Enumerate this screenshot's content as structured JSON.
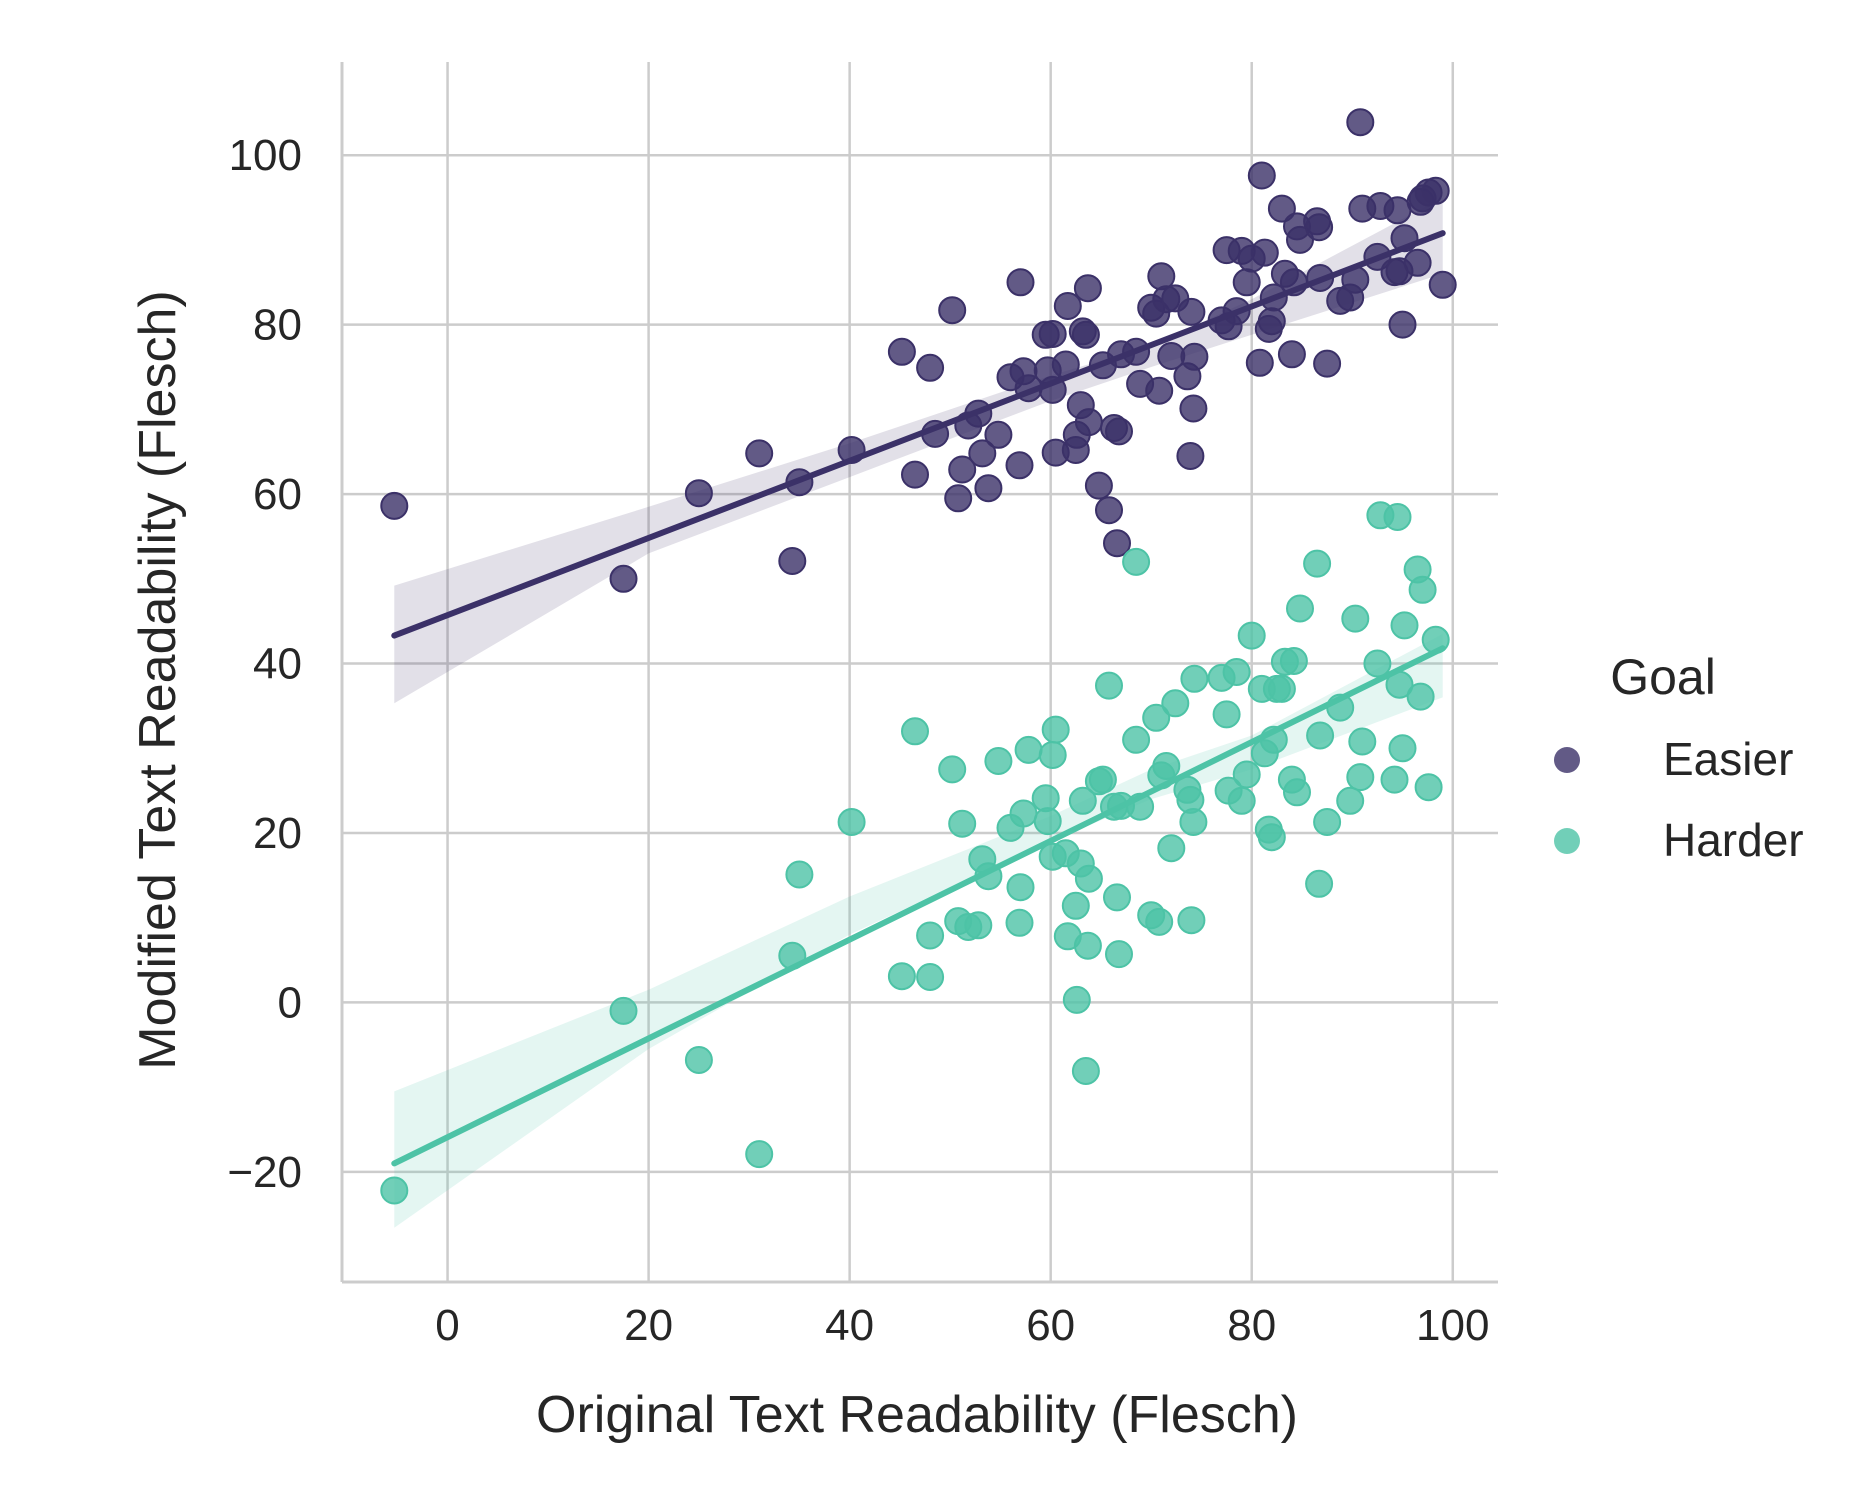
{
  "chart_data": {
    "type": "scatter",
    "xlabel": "Original Text Readability (Flesch)",
    "ylabel": "Modified Text Readability (Flesch)",
    "xlim": [
      -10.5,
      104.5
    ],
    "ylim": [
      -33,
      111
    ],
    "xticks": [
      0,
      20,
      40,
      60,
      80,
      100
    ],
    "yticks": [
      -20,
      0,
      20,
      40,
      60,
      80,
      100
    ],
    "x_tick_labels": [
      "0",
      "20",
      "40",
      "60",
      "80",
      "100"
    ],
    "y_tick_labels": [
      "−20",
      "0",
      "20",
      "40",
      "60",
      "80",
      "100"
    ],
    "grid": true,
    "legend": {
      "title": "Goal",
      "placement": "right"
    },
    "series": [
      {
        "name": "Easier",
        "color": "#3b3168",
        "regression": {
          "x": [
            -5.3,
            99.0
          ],
          "y": [
            43.3,
            90.8
          ]
        },
        "ci_band": {
          "x": [
            -5.3,
            20,
            40,
            60,
            70,
            80,
            99.0
          ],
          "lower": [
            35.3,
            53.0,
            62.0,
            71.0,
            75.0,
            78.8,
            86.0
          ],
          "upper": [
            49.2,
            58.5,
            66.0,
            74.0,
            77.5,
            83.0,
            95.0
          ]
        },
        "points": [
          [
            -5.3,
            58.6
          ],
          [
            17.5,
            50.0
          ],
          [
            25.0,
            60.1
          ],
          [
            31.0,
            64.8
          ],
          [
            34.3,
            52.1
          ],
          [
            35.0,
            61.4
          ],
          [
            40.2,
            65.2
          ],
          [
            45.2,
            76.8
          ],
          [
            46.5,
            62.3
          ],
          [
            48.0,
            74.9
          ],
          [
            48.5,
            67.1
          ],
          [
            50.2,
            81.7
          ],
          [
            50.8,
            59.5
          ],
          [
            51.2,
            62.9
          ],
          [
            51.8,
            68.1
          ],
          [
            52.8,
            69.5
          ],
          [
            53.2,
            64.8
          ],
          [
            53.8,
            60.7
          ],
          [
            54.8,
            67.0
          ],
          [
            56.0,
            73.8
          ],
          [
            56.9,
            63.4
          ],
          [
            57.0,
            85.0
          ],
          [
            57.3,
            74.5
          ],
          [
            57.8,
            72.5
          ],
          [
            59.5,
            78.8
          ],
          [
            59.7,
            74.6
          ],
          [
            60.2,
            72.3
          ],
          [
            60.2,
            78.9
          ],
          [
            60.5,
            64.9
          ],
          [
            61.5,
            75.3
          ],
          [
            61.7,
            82.2
          ],
          [
            62.5,
            65.2
          ],
          [
            62.6,
            67.0
          ],
          [
            63.0,
            70.5
          ],
          [
            63.2,
            79.2
          ],
          [
            63.5,
            78.8
          ],
          [
            63.7,
            84.3
          ],
          [
            63.8,
            68.5
          ],
          [
            64.8,
            61.0
          ],
          [
            65.2,
            75.2
          ],
          [
            65.8,
            58.1
          ],
          [
            66.3,
            67.8
          ],
          [
            66.6,
            54.2
          ],
          [
            66.8,
            67.4
          ],
          [
            67.0,
            76.5
          ],
          [
            68.5,
            76.8
          ],
          [
            68.9,
            73.0
          ],
          [
            70.0,
            82.0
          ],
          [
            70.5,
            81.3
          ],
          [
            70.8,
            72.2
          ],
          [
            71.0,
            85.7
          ],
          [
            71.5,
            83.0
          ],
          [
            72.0,
            76.3
          ],
          [
            72.4,
            83.1
          ],
          [
            73.6,
            73.9
          ],
          [
            73.9,
            64.5
          ],
          [
            74.0,
            81.5
          ],
          [
            74.2,
            70.1
          ],
          [
            74.3,
            76.2
          ],
          [
            77.0,
            80.5
          ],
          [
            77.5,
            88.8
          ],
          [
            77.7,
            79.8
          ],
          [
            78.5,
            81.6
          ],
          [
            79.0,
            88.7
          ],
          [
            79.5,
            85.0
          ],
          [
            80.0,
            87.8
          ],
          [
            80.8,
            75.5
          ],
          [
            81.0,
            97.6
          ],
          [
            81.3,
            88.5
          ],
          [
            81.7,
            79.5
          ],
          [
            82.0,
            80.4
          ],
          [
            82.2,
            83.2
          ],
          [
            83.0,
            93.7
          ],
          [
            83.3,
            86.0
          ],
          [
            84.0,
            76.5
          ],
          [
            84.2,
            85.0
          ],
          [
            84.5,
            91.6
          ],
          [
            84.8,
            90.0
          ],
          [
            86.5,
            92.2
          ],
          [
            86.7,
            91.5
          ],
          [
            86.8,
            85.5
          ],
          [
            87.5,
            75.4
          ],
          [
            88.8,
            82.8
          ],
          [
            89.8,
            83.2
          ],
          [
            90.3,
            85.3
          ],
          [
            90.8,
            103.9
          ],
          [
            91.0,
            93.7
          ],
          [
            92.5,
            88.0
          ],
          [
            92.8,
            94.0
          ],
          [
            94.2,
            86.2
          ],
          [
            94.5,
            93.5
          ],
          [
            94.7,
            86.3
          ],
          [
            95.0,
            80.0
          ],
          [
            95.2,
            90.2
          ],
          [
            96.5,
            87.3
          ],
          [
            96.8,
            94.5
          ],
          [
            97.0,
            94.9
          ],
          [
            97.6,
            95.6
          ],
          [
            98.3,
            95.8
          ],
          [
            99.0,
            84.7
          ]
        ]
      },
      {
        "name": "Harder",
        "color": "#4dc3a6",
        "regression": {
          "x": [
            -5.3,
            99.0
          ],
          "y": [
            -19.0,
            41.8
          ]
        },
        "ci_band": {
          "x": [
            -5.3,
            20,
            40,
            60,
            70,
            80,
            99.0
          ],
          "lower": [
            -26.6,
            -5.5,
            8.0,
            19.0,
            24.0,
            27.5,
            36.0
          ],
          "upper": [
            -10.5,
            1.5,
            12.5,
            22.0,
            27.5,
            31.5,
            43.5
          ]
        },
        "points": [
          [
            -5.3,
            -22.2
          ],
          [
            17.5,
            -1.0
          ],
          [
            25.0,
            -6.8
          ],
          [
            31.0,
            -17.9
          ],
          [
            34.3,
            5.5
          ],
          [
            35.0,
            15.1
          ],
          [
            40.2,
            21.3
          ],
          [
            45.2,
            3.1
          ],
          [
            46.5,
            32.0
          ],
          [
            48.0,
            7.9
          ],
          [
            48.0,
            3.0
          ],
          [
            50.2,
            27.5
          ],
          [
            50.8,
            9.6
          ],
          [
            51.2,
            21.1
          ],
          [
            51.8,
            8.9
          ],
          [
            52.8,
            9.1
          ],
          [
            53.2,
            16.9
          ],
          [
            53.8,
            14.9
          ],
          [
            54.8,
            28.5
          ],
          [
            56.0,
            20.6
          ],
          [
            56.9,
            9.4
          ],
          [
            57.0,
            13.6
          ],
          [
            57.3,
            22.3
          ],
          [
            57.8,
            29.8
          ],
          [
            59.5,
            24.1
          ],
          [
            59.7,
            21.4
          ],
          [
            60.2,
            29.2
          ],
          [
            60.2,
            17.2
          ],
          [
            60.5,
            32.2
          ],
          [
            61.5,
            17.6
          ],
          [
            61.7,
            7.8
          ],
          [
            62.5,
            11.4
          ],
          [
            62.6,
            0.3
          ],
          [
            63.0,
            16.4
          ],
          [
            63.2,
            23.8
          ],
          [
            63.5,
            -8.1
          ],
          [
            63.7,
            6.7
          ],
          [
            63.8,
            14.6
          ],
          [
            64.8,
            26.1
          ],
          [
            65.2,
            26.3
          ],
          [
            65.8,
            37.4
          ],
          [
            66.3,
            23.1
          ],
          [
            66.6,
            12.4
          ],
          [
            66.8,
            5.7
          ],
          [
            67.0,
            23.2
          ],
          [
            68.5,
            31.0
          ],
          [
            68.9,
            23.1
          ],
          [
            70.0,
            10.3
          ],
          [
            70.5,
            33.6
          ],
          [
            70.8,
            9.5
          ],
          [
            71.0,
            26.8
          ],
          [
            71.5,
            27.9
          ],
          [
            72.0,
            18.2
          ],
          [
            72.4,
            35.3
          ],
          [
            73.6,
            25.1
          ],
          [
            73.9,
            23.9
          ],
          [
            74.0,
            9.7
          ],
          [
            74.2,
            21.3
          ],
          [
            74.3,
            38.2
          ],
          [
            77.0,
            38.3
          ],
          [
            77.5,
            34.0
          ],
          [
            77.7,
            25.0
          ],
          [
            78.5,
            39.0
          ],
          [
            79.0,
            23.8
          ],
          [
            79.5,
            26.9
          ],
          [
            80.0,
            43.3
          ],
          [
            81.3,
            29.4
          ],
          [
            81.0,
            37.0
          ],
          [
            81.7,
            20.4
          ],
          [
            82.0,
            19.5
          ],
          [
            82.2,
            31.0
          ],
          [
            82.5,
            37.0
          ],
          [
            83.0,
            37.0
          ],
          [
            83.3,
            40.2
          ],
          [
            84.0,
            26.3
          ],
          [
            84.2,
            40.3
          ],
          [
            84.5,
            24.8
          ],
          [
            84.8,
            46.5
          ],
          [
            86.5,
            51.8
          ],
          [
            86.7,
            14.0
          ],
          [
            86.8,
            31.5
          ],
          [
            87.5,
            21.3
          ],
          [
            88.8,
            34.8
          ],
          [
            89.8,
            23.8
          ],
          [
            90.3,
            45.3
          ],
          [
            90.8,
            26.6
          ],
          [
            91.0,
            30.8
          ],
          [
            92.5,
            40.0
          ],
          [
            92.8,
            57.5
          ],
          [
            94.2,
            26.3
          ],
          [
            94.5,
            57.3
          ],
          [
            94.7,
            37.5
          ],
          [
            95.2,
            44.5
          ],
          [
            95.0,
            30.0
          ],
          [
            96.5,
            51.1
          ],
          [
            96.8,
            36.1
          ],
          [
            97.0,
            48.7
          ],
          [
            97.6,
            25.4
          ],
          [
            98.3,
            42.8
          ],
          [
            68.5,
            52.0
          ]
        ]
      }
    ]
  }
}
